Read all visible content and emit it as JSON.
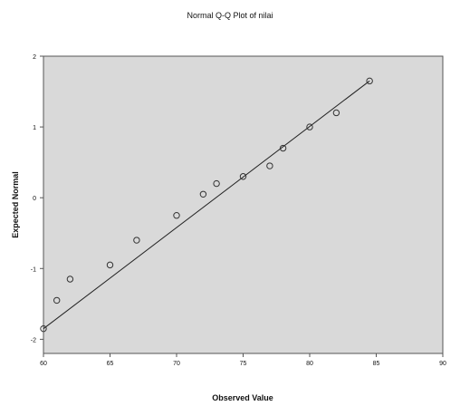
{
  "chart_data": {
    "type": "scatter",
    "title": "Normal Q-Q Plot of nilai",
    "xlabel": "Observed Value",
    "ylabel": "Expected Normal",
    "xlim": [
      60,
      90
    ],
    "ylim": [
      -2.2,
      2.0
    ],
    "x_ticks": [
      60,
      65,
      70,
      75,
      80,
      85,
      90
    ],
    "y_ticks": [
      2,
      1,
      0,
      -1,
      -2
    ],
    "grid": false,
    "legend": "none",
    "colors": {
      "plot_background": "#d9d9d9",
      "point_stroke": "#333333",
      "line": "#222222",
      "frame": "#555555"
    },
    "reference_line": {
      "from": [
        60,
        -1.85
      ],
      "to": [
        84.5,
        1.65
      ]
    },
    "points": [
      {
        "x": 60,
        "y": -1.85
      },
      {
        "x": 61,
        "y": -1.45
      },
      {
        "x": 62,
        "y": -1.15
      },
      {
        "x": 65,
        "y": -0.95
      },
      {
        "x": 67,
        "y": -0.6
      },
      {
        "x": 70,
        "y": -0.25
      },
      {
        "x": 72,
        "y": 0.05
      },
      {
        "x": 73,
        "y": 0.2
      },
      {
        "x": 75,
        "y": 0.3
      },
      {
        "x": 77,
        "y": 0.45
      },
      {
        "x": 78,
        "y": 0.7
      },
      {
        "x": 80,
        "y": 1.0
      },
      {
        "x": 82,
        "y": 1.2
      },
      {
        "x": 84.5,
        "y": 1.65
      }
    ]
  }
}
